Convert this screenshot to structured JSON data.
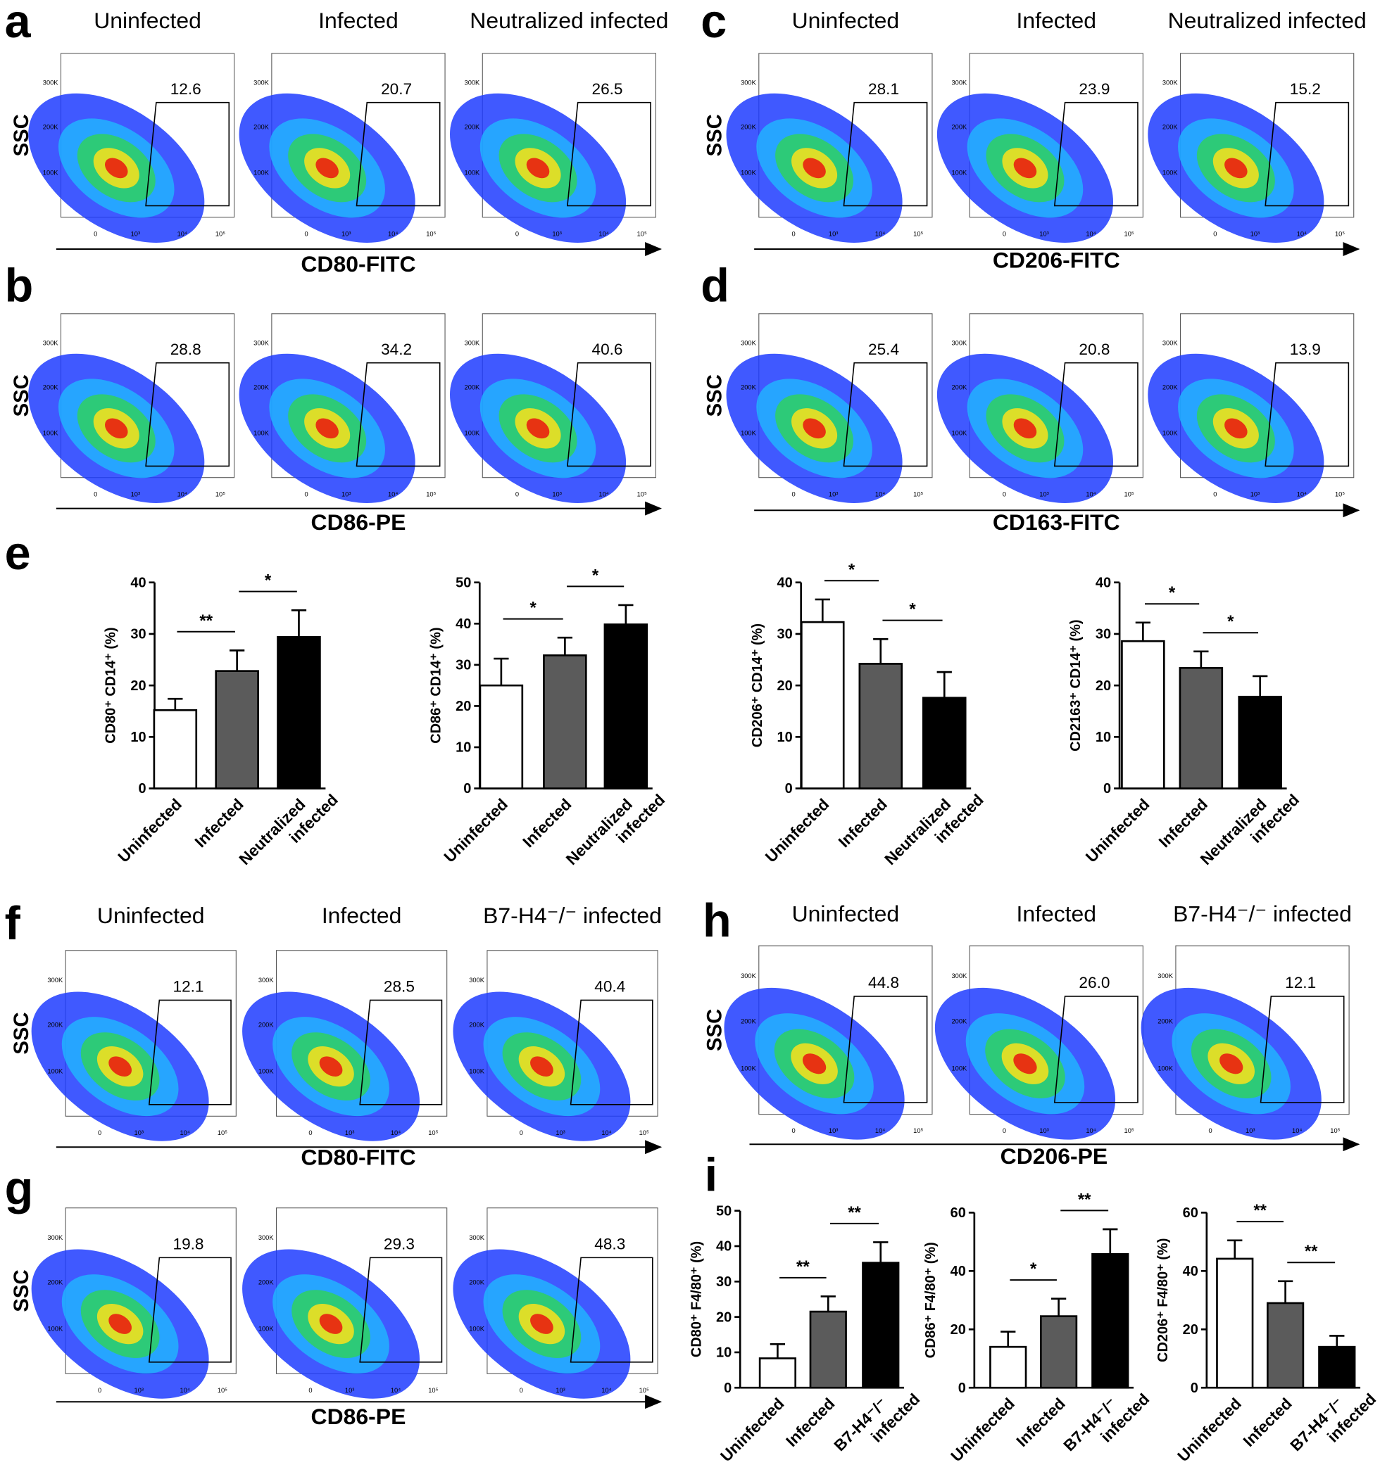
{
  "flow_axis": {
    "ylabel": "SSC",
    "yticks": [
      "300K",
      "200K",
      "100K"
    ],
    "xticks": [
      "0",
      "10³",
      "10⁴",
      "10⁵"
    ]
  },
  "flow_panels": [
    {
      "letter": "a",
      "titles": [
        "Uninfected",
        "Infected",
        "Neutralized infected"
      ],
      "gates": [
        "12.6",
        "20.7",
        "26.5"
      ],
      "xlabel": "CD80-FITC"
    },
    {
      "letter": "b",
      "gates": [
        "28.8",
        "34.2",
        "40.6"
      ],
      "xlabel": "CD86-PE"
    },
    {
      "letter": "c",
      "titles": [
        "Uninfected",
        "Infected",
        "Neutralized infected"
      ],
      "gates": [
        "28.1",
        "23.9",
        "15.2"
      ],
      "xlabel": "CD206-FITC"
    },
    {
      "letter": "d",
      "gates": [
        "25.4",
        "20.8",
        "13.9"
      ],
      "xlabel": "CD163-FITC"
    },
    {
      "letter": "f",
      "titles": [
        "Uninfected",
        "Infected",
        "B7-H4⁻/⁻ infected"
      ],
      "gates": [
        "12.1",
        "28.5",
        "40.4"
      ],
      "xlabel": "CD80-FITC"
    },
    {
      "letter": "g",
      "gates": [
        "19.8",
        "29.3",
        "48.3"
      ],
      "xlabel": "CD86-PE"
    },
    {
      "letter": "h",
      "titles": [
        "Uninfected",
        "Infected",
        "B7-H4⁻/⁻ infected"
      ],
      "gates": [
        "44.8",
        "26.0",
        "12.1"
      ],
      "xlabel": "CD206-PE"
    }
  ],
  "bar_panel_letters": [
    "e",
    "i"
  ],
  "chart_data": [
    {
      "type": "bar",
      "ylabel": "CD80⁺ CD14⁺ (%)",
      "categories": [
        "Uninfected",
        "Infected",
        "Neutralized infected"
      ],
      "values": [
        15.2,
        22.8,
        29.4
      ],
      "errors": [
        2.2,
        4.0,
        5.2
      ],
      "colors": [
        "#ffffff",
        "#5b5b5b",
        "#000000"
      ],
      "ylim": [
        0,
        40
      ],
      "yticks": [
        0,
        10,
        20,
        30,
        40
      ],
      "brackets": [
        "**",
        "*"
      ]
    },
    {
      "type": "bar",
      "ylabel": "CD86⁺ CD14⁺ (%)",
      "categories": [
        "Uninfected",
        "Infected",
        "Neutralized infected"
      ],
      "values": [
        25.0,
        32.3,
        39.8
      ],
      "errors": [
        6.5,
        4.3,
        4.7
      ],
      "colors": [
        "#ffffff",
        "#5b5b5b",
        "#000000"
      ],
      "ylim": [
        0,
        50
      ],
      "yticks": [
        0,
        10,
        20,
        30,
        40,
        50
      ],
      "brackets": [
        "*",
        "*"
      ]
    },
    {
      "type": "bar",
      "ylabel": "CD206⁺ CD14⁺ (%)",
      "categories": [
        "Uninfected",
        "Infected",
        "Neutralized infected"
      ],
      "values": [
        32.3,
        24.2,
        17.6
      ],
      "errors": [
        4.4,
        4.8,
        5.0
      ],
      "colors": [
        "#ffffff",
        "#5b5b5b",
        "#000000"
      ],
      "ylim": [
        0,
        40
      ],
      "yticks": [
        0,
        10,
        20,
        30,
        40
      ],
      "brackets": [
        "*",
        "*"
      ]
    },
    {
      "type": "bar",
      "ylabel": "CD2163⁺ CD14⁺ (%)",
      "categories": [
        "Uninfected",
        "Infected",
        "Neutralized infected"
      ],
      "values": [
        28.6,
        23.4,
        17.8
      ],
      "errors": [
        3.6,
        3.2,
        4.0
      ],
      "colors": [
        "#ffffff",
        "#5b5b5b",
        "#000000"
      ],
      "ylim": [
        0,
        40
      ],
      "yticks": [
        0,
        10,
        20,
        30,
        40
      ],
      "brackets": [
        "*",
        "*"
      ]
    },
    {
      "type": "bar",
      "ylabel": "CD80⁺ F4/80⁺ (%)",
      "categories": [
        "Uninfected",
        "Infected",
        "B7-H4⁻/⁻ infected"
      ],
      "values": [
        8.3,
        21.5,
        35.3
      ],
      "errors": [
        4.0,
        4.3,
        5.8
      ],
      "colors": [
        "#ffffff",
        "#5b5b5b",
        "#000000"
      ],
      "ylim": [
        0,
        50
      ],
      "yticks": [
        0,
        10,
        20,
        30,
        40,
        50
      ],
      "brackets": [
        "**",
        "**"
      ]
    },
    {
      "type": "bar",
      "ylabel": "CD86⁺ F4/80⁺ (%)",
      "categories": [
        "Uninfected",
        "Infected",
        "B7-H4⁻/⁻ infected"
      ],
      "values": [
        14.0,
        24.5,
        45.8
      ],
      "errors": [
        5.2,
        6.0,
        8.5
      ],
      "colors": [
        "#ffffff",
        "#5b5b5b",
        "#000000"
      ],
      "ylim": [
        0,
        60
      ],
      "yticks": [
        0,
        20,
        40,
        60
      ],
      "brackets": [
        "*",
        "**"
      ]
    },
    {
      "type": "bar",
      "ylabel": "CD206⁺ F4/80⁺ (%)",
      "categories": [
        "Uninfected",
        "Infected",
        "B7-H4⁻/⁻ infected"
      ],
      "values": [
        44.2,
        29.0,
        14.0
      ],
      "errors": [
        6.3,
        7.5,
        3.8
      ],
      "colors": [
        "#ffffff",
        "#5b5b5b",
        "#000000"
      ],
      "ylim": [
        0,
        60
      ],
      "yticks": [
        0,
        20,
        40,
        60
      ],
      "brackets": [
        "**",
        "**"
      ]
    }
  ]
}
